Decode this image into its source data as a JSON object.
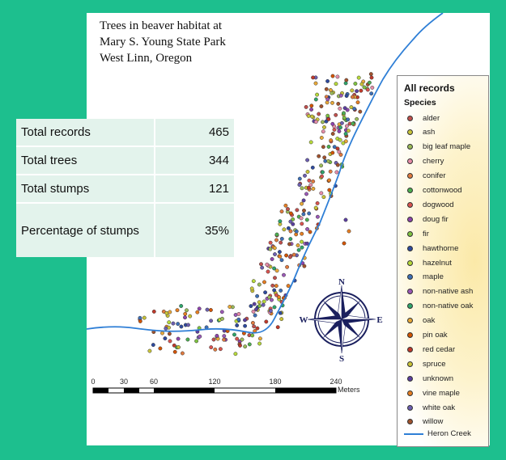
{
  "title": {
    "line1": "Trees in beaver habitat at",
    "line2": "Mary S. Young State Park",
    "line3": "West Linn, Oregon"
  },
  "stats": [
    {
      "label": "Total records",
      "value": "465"
    },
    {
      "label": "Total trees",
      "value": "344"
    },
    {
      "label": "Total stumps",
      "value": "121"
    },
    {
      "label": "Percentage of stumps",
      "value": "35%"
    }
  ],
  "legend": {
    "title": "All records",
    "subtitle": "Species",
    "species": [
      {
        "name": "alder",
        "color": "#c0504d"
      },
      {
        "name": "ash",
        "color": "#c8c43a"
      },
      {
        "name": "big leaf maple",
        "color": "#9bbb59"
      },
      {
        "name": "cherry",
        "color": "#e58ca8"
      },
      {
        "name": "conifer",
        "color": "#e07a3f"
      },
      {
        "name": "cottonwood",
        "color": "#4caf50"
      },
      {
        "name": "dogwood",
        "color": "#d9534f"
      },
      {
        "name": "doug fir",
        "color": "#8e44ad"
      },
      {
        "name": "fir",
        "color": "#7fc241"
      },
      {
        "name": "hawthorne",
        "color": "#2e4a9e"
      },
      {
        "name": "hazelnut",
        "color": "#b7d93a"
      },
      {
        "name": "maple",
        "color": "#3d6fb6"
      },
      {
        "name": "non-native ash",
        "color": "#9b59b6"
      },
      {
        "name": "non-native oak",
        "color": "#2ea56b"
      },
      {
        "name": "oak",
        "color": "#e8a838"
      },
      {
        "name": "pin oak",
        "color": "#d35400"
      },
      {
        "name": "red cedar",
        "color": "#c0392b"
      },
      {
        "name": "spruce",
        "color": "#c9c236"
      },
      {
        "name": "unknown",
        "color": "#5b3fa0"
      },
      {
        "name": "vine maple",
        "color": "#e67e22"
      },
      {
        "name": "white oak",
        "color": "#6c5fb0"
      },
      {
        "name": "willow",
        "color": "#a0522d"
      }
    ],
    "creek_label": "Heron Creek",
    "creek_color": "#2f7fd6"
  },
  "scale_bar": {
    "ticks": [
      "0",
      "30",
      "60",
      "120",
      "180",
      "240"
    ],
    "unit": "Meters"
  },
  "compass": {
    "n": "N",
    "s": "S",
    "e": "E",
    "w": "W"
  }
}
